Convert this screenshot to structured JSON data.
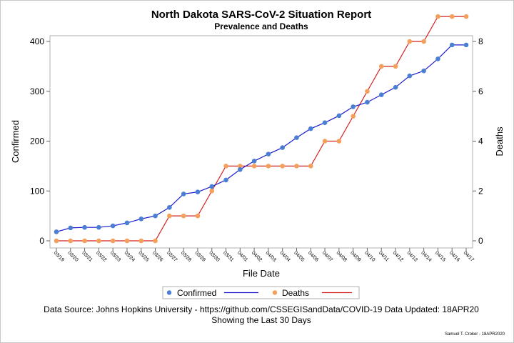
{
  "chart_data": {
    "type": "line",
    "title": "North Dakota SARS-CoV-2 Situation Report",
    "subtitle": "Prevalence and Deaths",
    "xlabel": "File Date",
    "ylabel": "Confirmed",
    "y2label": "Deaths",
    "ylim": [
      0,
      400
    ],
    "yticks": [
      0,
      100,
      200,
      300,
      400
    ],
    "y2lim": [
      0,
      8
    ],
    "y2ticks": [
      0,
      2,
      4,
      6,
      8
    ],
    "grid": false,
    "legend_position": "bottom",
    "categories": [
      "03/19",
      "03/20",
      "03/21",
      "03/22",
      "03/23",
      "03/24",
      "03/25",
      "03/26",
      "03/27",
      "03/28",
      "03/29",
      "03/30",
      "03/31",
      "04/01",
      "04/02",
      "04/03",
      "04/04",
      "04/05",
      "04/06",
      "04/07",
      "04/08",
      "04/09",
      "04/10",
      "04/11",
      "04/12",
      "04/13",
      "04/14",
      "04/15",
      "04/16",
      "04/17"
    ],
    "series": [
      {
        "name": "Confirmed",
        "axis": "left",
        "marker_color": "#4a7fd4",
        "line_color": "#1a1acc",
        "values": [
          18,
          26,
          27,
          27,
          30,
          36,
          44,
          50,
          67,
          94,
          98,
          109,
          122,
          143,
          160,
          174,
          187,
          207,
          225,
          237,
          251,
          269,
          278,
          293,
          308,
          331,
          341,
          365,
          393,
          393
        ]
      },
      {
        "name": "Deaths",
        "axis": "right",
        "marker_color": "#f5a05a",
        "line_color": "#d42020",
        "values": [
          0,
          0,
          0,
          0,
          0,
          0,
          0,
          0,
          1,
          1,
          1,
          2,
          3,
          3,
          3,
          3,
          3,
          3,
          3,
          4,
          4,
          5,
          6,
          7,
          7,
          8,
          8,
          9,
          9,
          9
        ]
      }
    ]
  },
  "legend": {
    "items": [
      {
        "label": "Confirmed"
      },
      {
        "label": "Deaths"
      }
    ]
  },
  "footnote": {
    "line1": "Data Source: Johns Hopkins University - https://github.com/CSSEGISandData/COVID-19 Data Updated: 18APR20",
    "line2": "Showing the Last 30 Days"
  },
  "credit": "Samuel T. Croker - 18APR2020"
}
